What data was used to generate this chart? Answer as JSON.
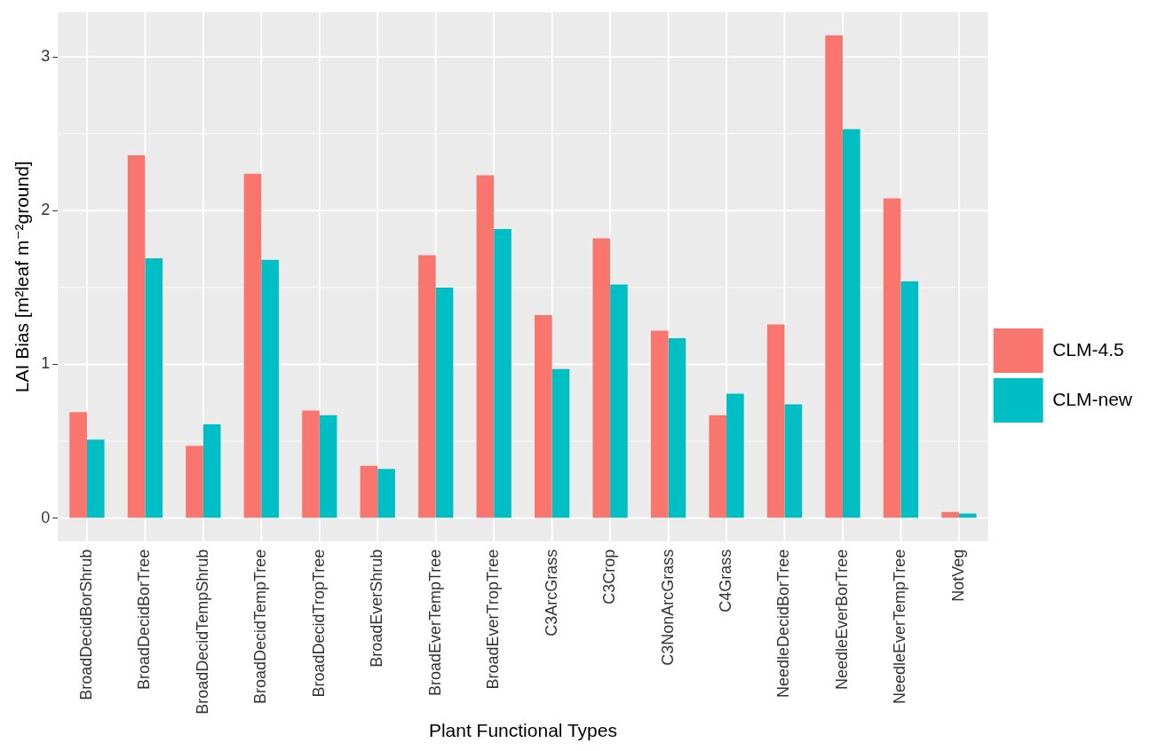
{
  "chart_data": {
    "type": "bar",
    "xlabel": "Plant Functional Types",
    "ylabel": "LAI Bias [m²leaf m⁻²ground]",
    "categories": [
      "BroadDecidBorShrub",
      "BroadDecidBorTree",
      "BroadDecidTempShrub",
      "BroadDecidTempTree",
      "BroadDecidTropTree",
      "BroadEverShrub",
      "BroadEverTempTree",
      "BroadEverTropTree",
      "C3ArcGrass",
      "C3Crop",
      "C3NonArcGrass",
      "C4Grass",
      "NeedleDecidBorTree",
      "NeedleEverBorTree",
      "NeedleEverTempTree",
      "NotVeg"
    ],
    "series": [
      {
        "name": "CLM-4.5",
        "color": "#f8766d",
        "values": [
          0.69,
          2.36,
          0.47,
          2.24,
          0.7,
          0.34,
          1.71,
          2.23,
          1.32,
          1.82,
          1.22,
          0.67,
          1.26,
          3.14,
          2.08,
          0.04
        ]
      },
      {
        "name": "CLM-new",
        "color": "#00bfc4",
        "values": [
          0.51,
          1.69,
          0.61,
          1.68,
          0.67,
          0.32,
          1.5,
          1.88,
          0.97,
          1.52,
          1.17,
          0.81,
          0.74,
          2.53,
          1.54,
          0.03
        ]
      }
    ],
    "ylim": [
      -0.15,
      3.29
    ],
    "yticks": [
      0,
      {
        "value": 0.5,
        "label": null
      },
      1,
      {
        "value": 1.5,
        "label": null
      },
      2,
      {
        "value": 2.5,
        "label": null
      },
      3
    ],
    "grid": true,
    "legend": "right"
  }
}
